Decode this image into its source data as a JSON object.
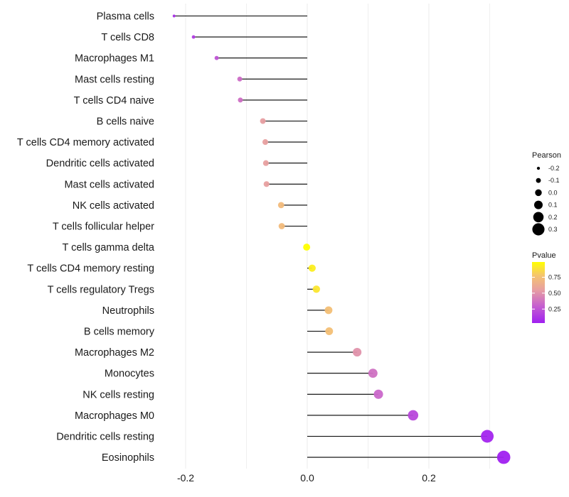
{
  "chart_data": {
    "type": "scatter",
    "subtype": "lollipop",
    "title": "",
    "xlabel": "",
    "ylabel": "",
    "xlim": [
      -0.265,
      0.345
    ],
    "xticks": [
      -0.2,
      0.0,
      0.2
    ],
    "xtick_labels": [
      "-0.2",
      "0.0",
      "0.2"
    ],
    "grid": true,
    "categories": [
      "Plasma cells",
      "T cells CD8",
      "Macrophages M1",
      "Mast cells resting",
      "T cells CD4 naive",
      "B cells naive",
      "T cells CD4 memory activated",
      "Dendritic cells activated",
      "Mast cells activated",
      "NK cells activated",
      "T cells follicular helper",
      "T cells gamma delta",
      "T cells CD4 memory resting",
      "T cells regulatory  Tregs ",
      "Neutrophils",
      "B cells memory",
      "Macrophages M2",
      "Monocytes",
      "NK cells resting",
      "Macrophages M0",
      "Dendritic cells resting",
      "Eosinophils"
    ],
    "series": [
      {
        "name": "Pearson",
        "values": [
          -0.219,
          -0.187,
          -0.149,
          -0.111,
          -0.11,
          -0.073,
          -0.069,
          -0.068,
          -0.067,
          -0.043,
          -0.042,
          -0.001,
          0.008,
          0.015,
          0.035,
          0.036,
          0.082,
          0.108,
          0.117,
          0.174,
          0.296,
          0.323
        ]
      },
      {
        "name": "Pvalue",
        "values": [
          0.1,
          0.15,
          0.25,
          0.35,
          0.36,
          0.55,
          0.56,
          0.56,
          0.56,
          0.72,
          0.72,
          0.99,
          0.93,
          0.9,
          0.75,
          0.75,
          0.5,
          0.37,
          0.33,
          0.2,
          0.05,
          0.03
        ]
      }
    ],
    "legend": {
      "placement": "right",
      "size": {
        "title": "Pearson",
        "values": [
          -0.2,
          -0.1,
          0.0,
          0.1,
          0.2,
          0.3
        ],
        "labels": [
          "-0.2",
          "-0.1",
          "0.0",
          "0.1",
          "0.2",
          "0.3"
        ]
      },
      "color": {
        "title": "Pvalue",
        "range": [
          0.03,
          0.99
        ],
        "ticks": [
          0.25,
          0.5,
          0.75
        ],
        "tick_labels": [
          "0.25",
          "0.50",
          "0.75"
        ],
        "low_color": "#a020f0",
        "mid_color": "#e8a0a0",
        "high_color": "#ffff00"
      }
    },
    "colors": {
      "segment": "#000000",
      "grid": "#ebebeb"
    }
  }
}
